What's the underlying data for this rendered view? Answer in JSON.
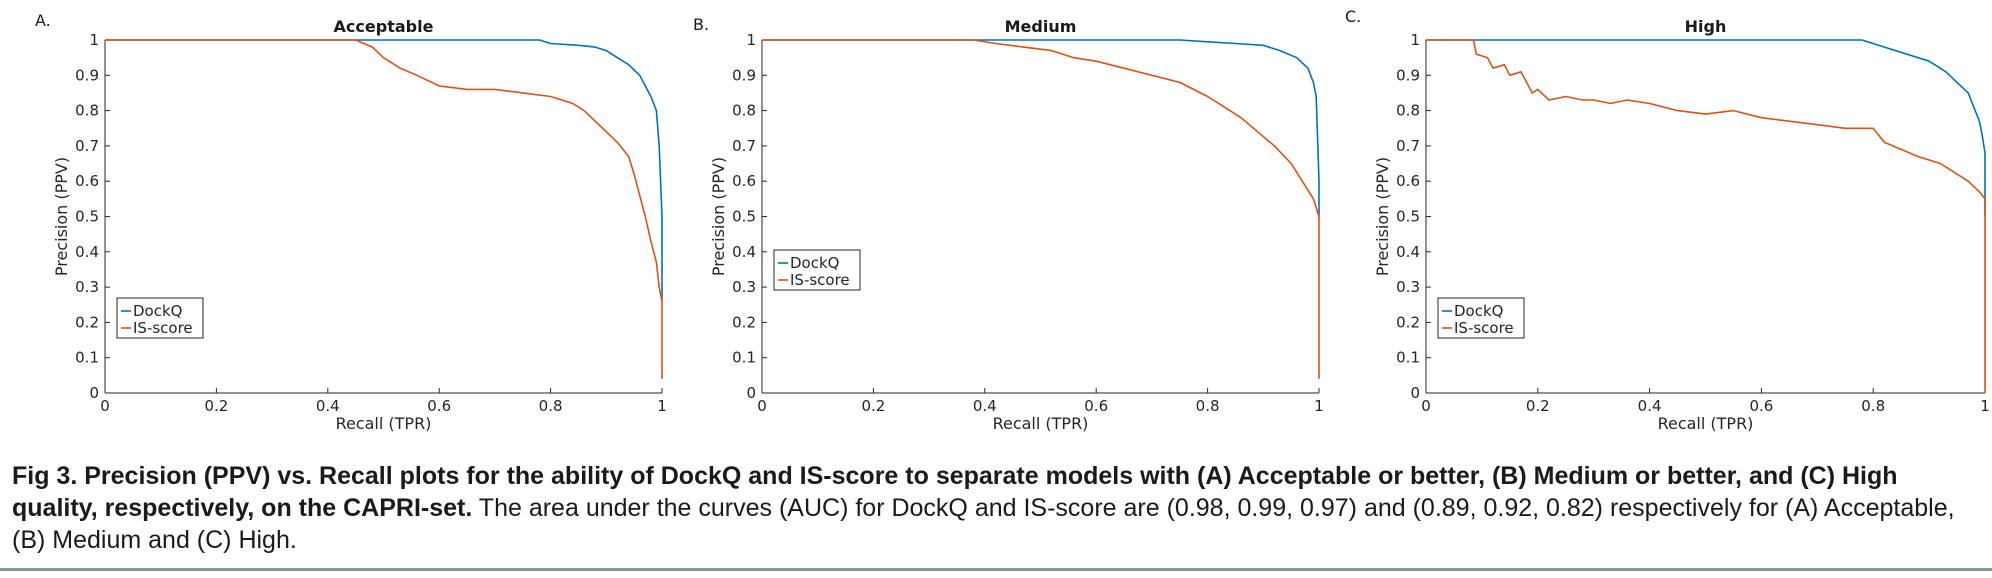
{
  "chart_data": [
    {
      "type": "line",
      "panel_label": "A.",
      "title": "Acceptable",
      "xlabel": "Recall (TPR)",
      "ylabel": "Precision (PPV)",
      "xlim": [
        0,
        1
      ],
      "ylim": [
        0,
        1
      ],
      "xticks": [
        "0",
        "0.2",
        "0.4",
        "0.6",
        "0.8",
        "1"
      ],
      "yticks": [
        "0",
        "0.1",
        "0.2",
        "0.3",
        "0.4",
        "0.5",
        "0.6",
        "0.7",
        "0.8",
        "0.9",
        "1"
      ],
      "grid": false,
      "legend_position": "bottom-left",
      "series": [
        {
          "name": "DockQ",
          "color": "#0072bd",
          "x": [
            0,
            0.78,
            0.8,
            0.85,
            0.88,
            0.9,
            0.92,
            0.94,
            0.96,
            0.97,
            0.98,
            0.99,
            0.995,
            1,
            1
          ],
          "y": [
            1,
            1,
            0.99,
            0.985,
            0.98,
            0.97,
            0.95,
            0.93,
            0.9,
            0.87,
            0.84,
            0.8,
            0.7,
            0.5,
            0.26
          ]
        },
        {
          "name": "IS-score",
          "color": "#d95319",
          "x": [
            0,
            0.45,
            0.48,
            0.5,
            0.53,
            0.56,
            0.6,
            0.65,
            0.7,
            0.75,
            0.8,
            0.84,
            0.86,
            0.88,
            0.9,
            0.92,
            0.94,
            0.95,
            0.96,
            0.97,
            0.98,
            0.99,
            0.995,
            1,
            1
          ],
          "y": [
            1,
            1,
            0.98,
            0.95,
            0.92,
            0.9,
            0.87,
            0.86,
            0.86,
            0.85,
            0.84,
            0.82,
            0.8,
            0.77,
            0.74,
            0.71,
            0.67,
            0.62,
            0.56,
            0.5,
            0.43,
            0.37,
            0.3,
            0.26,
            0.04
          ]
        }
      ]
    },
    {
      "type": "line",
      "panel_label": "B.",
      "title": "Medium",
      "xlabel": "Recall (TPR)",
      "ylabel": "Precision (PPV)",
      "xlim": [
        0,
        1
      ],
      "ylim": [
        0,
        1
      ],
      "xticks": [
        "0",
        "0.2",
        "0.4",
        "0.6",
        "0.8",
        "1"
      ],
      "yticks": [
        "0",
        "0.1",
        "0.2",
        "0.3",
        "0.4",
        "0.5",
        "0.6",
        "0.7",
        "0.8",
        "0.9",
        "1"
      ],
      "grid": false,
      "legend_position": "center-left",
      "series": [
        {
          "name": "DockQ",
          "color": "#0072bd",
          "x": [
            0,
            0.75,
            0.8,
            0.85,
            0.9,
            0.93,
            0.96,
            0.98,
            0.99,
            0.995,
            1,
            1
          ],
          "y": [
            1,
            1,
            0.995,
            0.99,
            0.985,
            0.97,
            0.95,
            0.92,
            0.88,
            0.84,
            0.6,
            0.5
          ]
        },
        {
          "name": "IS-score",
          "color": "#d95319",
          "x": [
            0,
            0.38,
            0.42,
            0.47,
            0.52,
            0.56,
            0.6,
            0.65,
            0.7,
            0.75,
            0.8,
            0.83,
            0.86,
            0.89,
            0.92,
            0.95,
            0.97,
            0.99,
            1,
            1
          ],
          "y": [
            1,
            1,
            0.99,
            0.98,
            0.97,
            0.95,
            0.94,
            0.92,
            0.9,
            0.88,
            0.84,
            0.81,
            0.78,
            0.74,
            0.7,
            0.65,
            0.6,
            0.55,
            0.5,
            0.04
          ]
        }
      ]
    },
    {
      "type": "line",
      "panel_label": "C.",
      "title": "High",
      "xlabel": "Recall (TPR)",
      "ylabel": "Precision (PPV)",
      "xlim": [
        0,
        1
      ],
      "ylim": [
        0,
        1
      ],
      "xticks": [
        "0",
        "0.2",
        "0.4",
        "0.6",
        "0.8",
        "1"
      ],
      "yticks": [
        "0",
        "0.1",
        "0.2",
        "0.3",
        "0.4",
        "0.5",
        "0.6",
        "0.7",
        "0.8",
        "0.9",
        "1"
      ],
      "grid": false,
      "legend_position": "bottom-left",
      "series": [
        {
          "name": "DockQ",
          "color": "#0072bd",
          "x": [
            0,
            0.78,
            0.82,
            0.86,
            0.9,
            0.93,
            0.95,
            0.97,
            0.98,
            0.99,
            0.995,
            1,
            1
          ],
          "y": [
            1,
            1,
            0.98,
            0.96,
            0.94,
            0.91,
            0.88,
            0.85,
            0.81,
            0.77,
            0.73,
            0.68,
            0.5
          ]
        },
        {
          "name": "IS-score",
          "color": "#d95319",
          "x": [
            0,
            0.085,
            0.09,
            0.11,
            0.12,
            0.14,
            0.15,
            0.17,
            0.19,
            0.2,
            0.22,
            0.25,
            0.28,
            0.3,
            0.33,
            0.36,
            0.4,
            0.45,
            0.5,
            0.55,
            0.6,
            0.65,
            0.7,
            0.75,
            0.8,
            0.82,
            0.85,
            0.88,
            0.92,
            0.95,
            0.97,
            0.99,
            1,
            1
          ],
          "y": [
            1,
            1,
            0.96,
            0.95,
            0.92,
            0.93,
            0.9,
            0.91,
            0.85,
            0.86,
            0.83,
            0.84,
            0.83,
            0.83,
            0.82,
            0.83,
            0.82,
            0.8,
            0.79,
            0.8,
            0.78,
            0.77,
            0.76,
            0.75,
            0.75,
            0.71,
            0.69,
            0.67,
            0.65,
            0.62,
            0.6,
            0.57,
            0.55,
            0.0
          ]
        }
      ]
    }
  ],
  "caption": {
    "bold": "Fig 3.  Precision (PPV) vs. Recall plots for the ability of DockQ and IS-score to separate models with (A) Acceptable or better, (B) Medium or better, and (C) High quality, respectively, on the CAPRI-set.",
    "normal": " The area under the curves (AUC) for DockQ and IS-score are (0.98, 0.99, 0.97) and (0.89, 0.92, 0.82) respectively for (A) Acceptable, (B) Medium and (C) High."
  }
}
